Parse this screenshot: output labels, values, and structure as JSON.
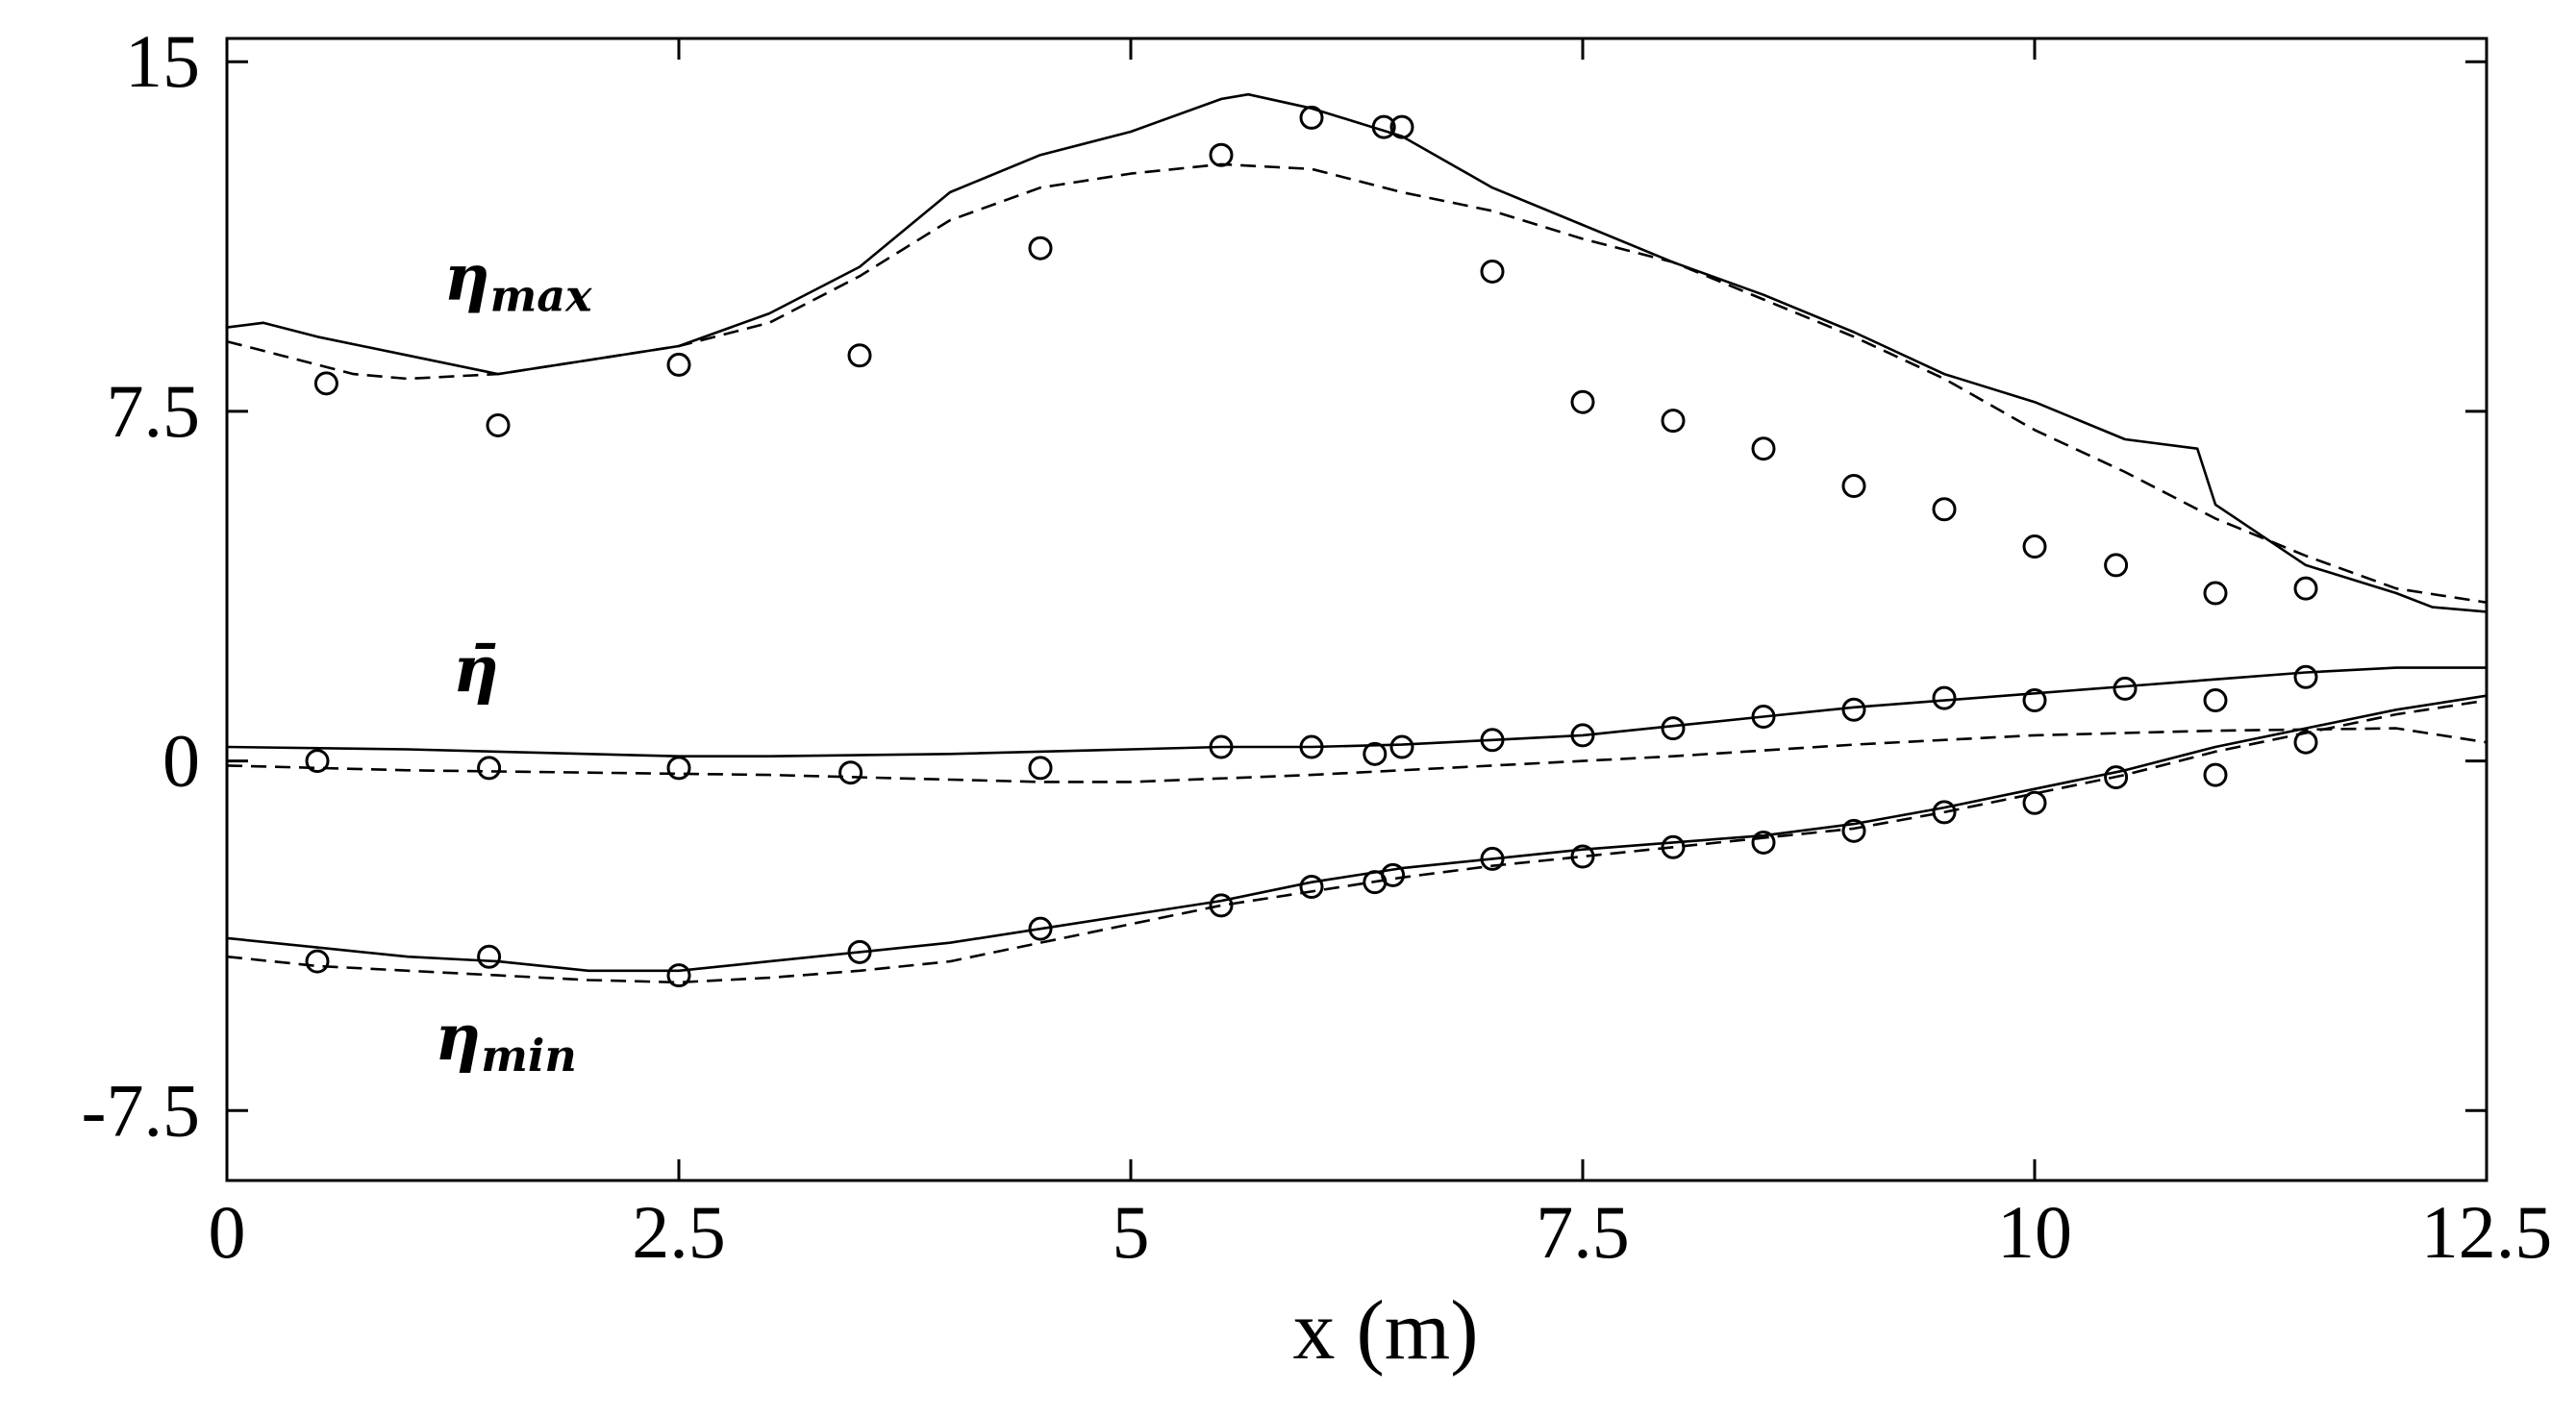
{
  "chart_data": {
    "type": "line",
    "title": "",
    "xlabel": "x (m)",
    "ylabel": "",
    "xlim": [
      0,
      12.5
    ],
    "ylim": [
      -9,
      15.5
    ],
    "xticks": [
      0,
      2.5,
      5,
      7.5,
      10,
      12.5
    ],
    "xtick_labels": [
      "0",
      "2.5",
      "5",
      "7.5",
      "10",
      "12.5"
    ],
    "yticks": [
      -7.5,
      0,
      7.5,
      15
    ],
    "ytick_labels": [
      "-7.5",
      "0",
      "7.5",
      "15"
    ],
    "grid": false,
    "legend": "none",
    "annotations": [
      {
        "main": "η",
        "sub": "max",
        "x": 1.2,
        "y": 9.9
      },
      {
        "main": "η̄",
        "sub": "",
        "x": 1.25,
        "y": 1.5
      },
      {
        "main": "η",
        "sub": "min",
        "x": 1.15,
        "y": -6.4
      }
    ],
    "series": [
      {
        "style": "solid",
        "x": [
          0,
          0.2,
          0.5,
          1.0,
          1.5,
          2.0,
          2.5,
          3.0,
          3.5,
          4.0,
          4.5,
          5.0,
          5.5,
          5.65,
          6.0,
          6.5,
          7.0,
          7.5,
          8.0,
          8.5,
          9.0,
          9.5,
          10.0,
          10.5,
          10.9,
          11.0,
          11.5,
          12.0,
          12.2,
          12.5
        ],
        "y": [
          9.3,
          9.4,
          9.1,
          8.7,
          8.3,
          8.6,
          8.9,
          9.6,
          10.6,
          12.2,
          13.0,
          13.5,
          14.2,
          14.3,
          14.0,
          13.4,
          12.3,
          11.5,
          10.7,
          10.0,
          9.2,
          8.3,
          7.7,
          6.9,
          6.7,
          5.5,
          4.2,
          3.6,
          3.3,
          3.2
        ]
      },
      {
        "style": "dashed",
        "x": [
          0,
          0.3,
          0.7,
          1.0,
          1.5,
          2.0,
          2.5,
          3.0,
          3.5,
          4.0,
          4.5,
          5.0,
          5.5,
          6.0,
          6.5,
          7.0,
          7.5,
          8.0,
          8.5,
          9.0,
          9.5,
          10.0,
          10.5,
          11.0,
          11.5,
          12.0,
          12.5
        ],
        "y": [
          9.0,
          8.7,
          8.3,
          8.2,
          8.3,
          8.6,
          8.9,
          9.4,
          10.4,
          11.6,
          12.3,
          12.6,
          12.8,
          12.7,
          12.2,
          11.8,
          11.2,
          10.7,
          9.9,
          9.1,
          8.2,
          7.1,
          6.2,
          5.2,
          4.4,
          3.7,
          3.4
        ]
      },
      {
        "style": "markers",
        "x": [
          0.55,
          1.5,
          2.5,
          3.5,
          4.5,
          5.5,
          6.0,
          6.4,
          6.5,
          7.0,
          7.5,
          8.0,
          8.5,
          9.0,
          9.5,
          10.0,
          10.45,
          11.0,
          11.5
        ],
        "y": [
          8.1,
          7.2,
          8.5,
          8.7,
          11.0,
          13.0,
          13.8,
          13.6,
          13.6,
          10.5,
          7.7,
          7.3,
          6.7,
          5.9,
          5.4,
          4.6,
          4.2,
          3.6,
          3.7
        ]
      },
      {
        "style": "solid",
        "x": [
          0,
          1.0,
          2.0,
          2.5,
          3.0,
          4.0,
          5.0,
          5.5,
          6.0,
          6.5,
          7.0,
          7.5,
          8.0,
          8.5,
          9.0,
          9.5,
          10.0,
          10.5,
          11.0,
          11.5,
          12.0,
          12.5
        ],
        "y": [
          0.3,
          0.25,
          0.15,
          0.1,
          0.1,
          0.15,
          0.25,
          0.3,
          0.3,
          0.35,
          0.45,
          0.55,
          0.75,
          0.95,
          1.15,
          1.3,
          1.45,
          1.6,
          1.75,
          1.9,
          2.0,
          2.0
        ]
      },
      {
        "style": "dashed",
        "x": [
          0,
          1.0,
          2.0,
          3.0,
          4.0,
          4.5,
          5.0,
          6.0,
          7.0,
          7.5,
          8.0,
          9.0,
          10.0,
          11.0,
          12.0,
          12.5
        ],
        "y": [
          -0.1,
          -0.2,
          -0.25,
          -0.3,
          -0.4,
          -0.45,
          -0.45,
          -0.3,
          -0.1,
          0.0,
          0.1,
          0.35,
          0.55,
          0.65,
          0.7,
          0.4
        ]
      },
      {
        "style": "markers",
        "x": [
          0.5,
          1.45,
          2.5,
          3.45,
          4.5,
          5.5,
          6.0,
          6.35,
          6.5,
          7.0,
          7.5,
          8.0,
          8.5,
          9.0,
          9.5,
          10.0,
          10.5,
          11.0,
          11.5
        ],
        "y": [
          0.0,
          -0.15,
          -0.15,
          -0.25,
          -0.15,
          0.3,
          0.3,
          0.15,
          0.3,
          0.45,
          0.55,
          0.7,
          0.95,
          1.1,
          1.35,
          1.3,
          1.55,
          1.3,
          1.8
        ]
      },
      {
        "style": "solid",
        "x": [
          0,
          0.5,
          1.0,
          1.5,
          2.0,
          2.5,
          3.0,
          3.5,
          4.0,
          4.5,
          5.0,
          5.5,
          6.0,
          6.5,
          7.0,
          7.5,
          8.0,
          8.5,
          9.0,
          9.5,
          10.0,
          10.5,
          11.0,
          11.5,
          12.0,
          12.5
        ],
        "y": [
          -3.8,
          -4.0,
          -4.2,
          -4.3,
          -4.5,
          -4.5,
          -4.3,
          -4.1,
          -3.9,
          -3.6,
          -3.3,
          -3.0,
          -2.6,
          -2.3,
          -2.1,
          -1.9,
          -1.75,
          -1.6,
          -1.35,
          -1.0,
          -0.6,
          -0.2,
          0.3,
          0.7,
          1.1,
          1.4
        ]
      },
      {
        "style": "dashed",
        "x": [
          0,
          0.5,
          1.0,
          1.5,
          2.0,
          2.5,
          3.0,
          3.5,
          4.0,
          4.5,
          5.0,
          5.5,
          6.0,
          6.5,
          7.0,
          7.5,
          8.0,
          8.5,
          9.0,
          9.5,
          10.0,
          10.5,
          11.0,
          11.5,
          12.0,
          12.5
        ],
        "y": [
          -4.2,
          -4.4,
          -4.5,
          -4.6,
          -4.7,
          -4.75,
          -4.65,
          -4.5,
          -4.3,
          -3.9,
          -3.5,
          -3.1,
          -2.8,
          -2.5,
          -2.25,
          -2.05,
          -1.85,
          -1.65,
          -1.45,
          -1.1,
          -0.7,
          -0.3,
          0.2,
          0.6,
          1.0,
          1.3
        ]
      },
      {
        "style": "markers",
        "x": [
          0.5,
          1.45,
          2.5,
          3.5,
          4.5,
          5.5,
          6.0,
          6.35,
          6.45,
          7.0,
          7.5,
          8.0,
          8.5,
          9.0,
          9.5,
          10.0,
          10.45,
          11.0,
          11.5
        ],
        "y": [
          -4.3,
          -4.2,
          -4.6,
          -4.1,
          -3.6,
          -3.1,
          -2.7,
          -2.6,
          -2.45,
          -2.1,
          -2.05,
          -1.85,
          -1.75,
          -1.5,
          -1.1,
          -0.9,
          -0.35,
          -0.3,
          0.4
        ]
      }
    ]
  }
}
